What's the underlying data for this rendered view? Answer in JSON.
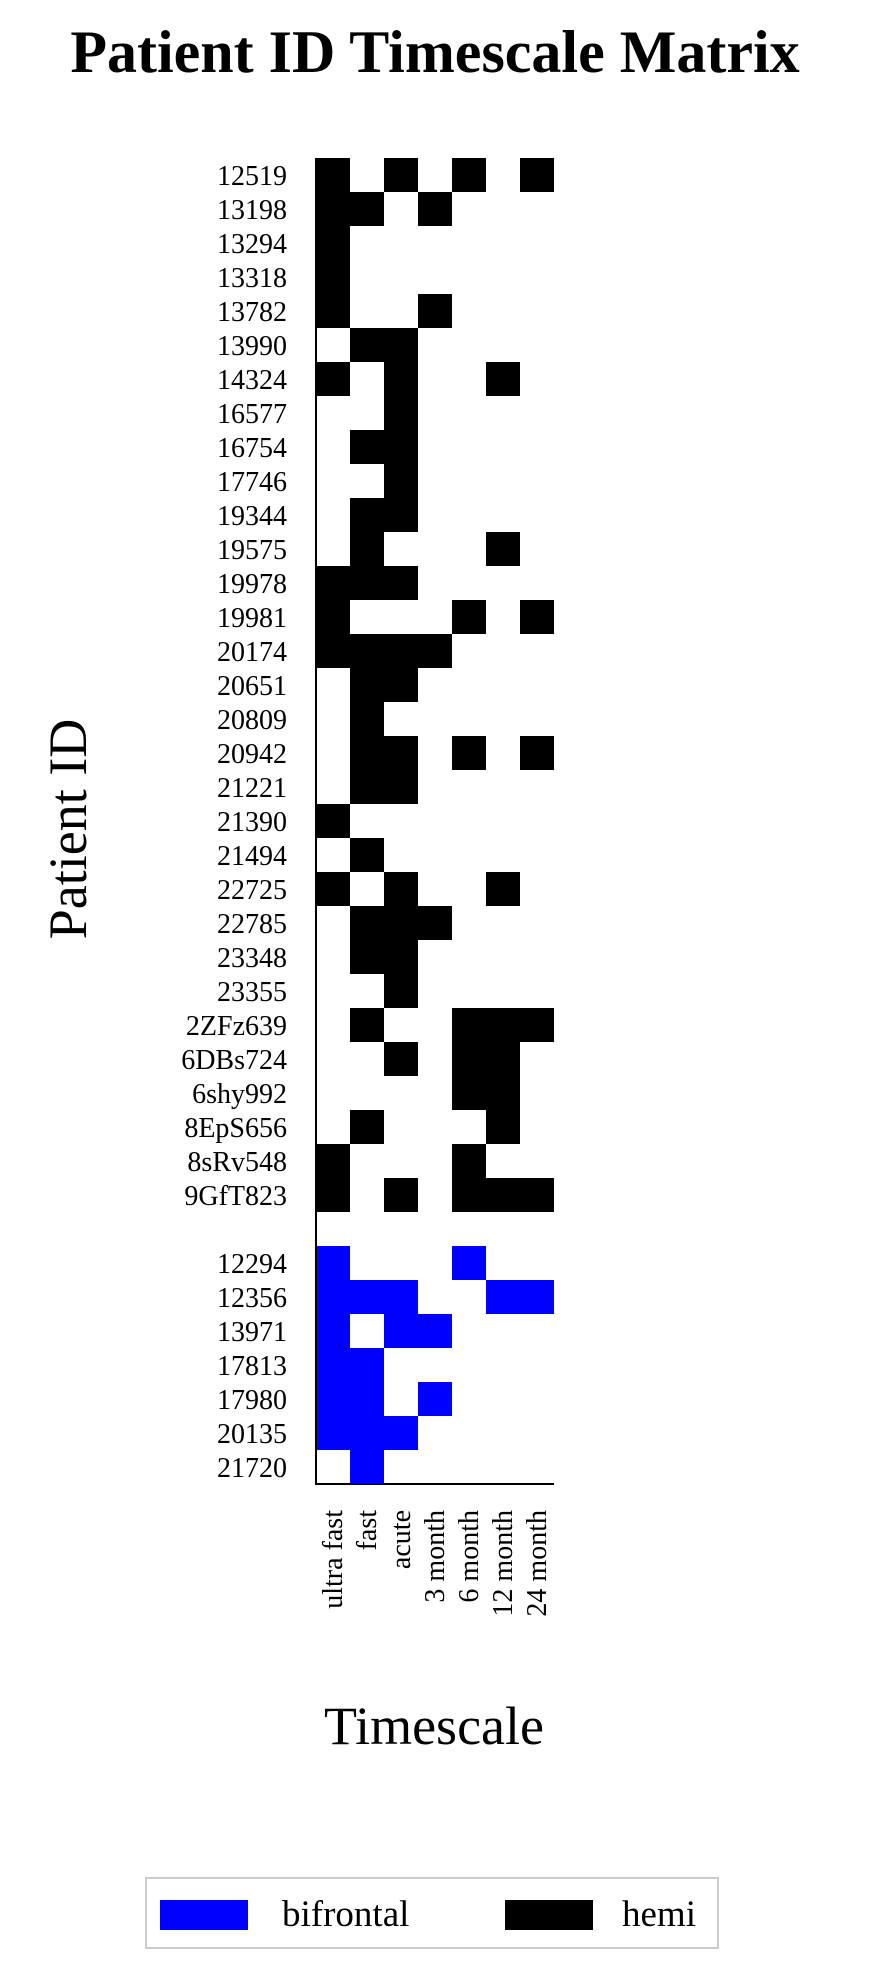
{
  "chart_data": {
    "type": "heatmap",
    "title": "Patient ID Timescale Matrix",
    "xlabel": "Timescale",
    "ylabel": "Patient ID",
    "timescales": [
      "ultra fast",
      "fast",
      "acute",
      "3 month",
      "6 month",
      "12 month",
      "24 month"
    ],
    "groups": [
      {
        "name": "hemi",
        "color": "#000000",
        "rows": [
          {
            "id": "12519",
            "values": [
              1,
              0,
              1,
              0,
              1,
              0,
              1
            ]
          },
          {
            "id": "13198",
            "values": [
              1,
              1,
              0,
              1,
              0,
              0,
              0
            ]
          },
          {
            "id": "13294",
            "values": [
              1,
              0,
              0,
              0,
              0,
              0,
              0
            ]
          },
          {
            "id": "13318",
            "values": [
              1,
              0,
              0,
              0,
              0,
              0,
              0
            ]
          },
          {
            "id": "13782",
            "values": [
              1,
              0,
              0,
              1,
              0,
              0,
              0
            ]
          },
          {
            "id": "13990",
            "values": [
              0,
              1,
              1,
              0,
              0,
              0,
              0
            ]
          },
          {
            "id": "14324",
            "values": [
              1,
              0,
              1,
              0,
              0,
              1,
              0
            ]
          },
          {
            "id": "16577",
            "values": [
              0,
              0,
              1,
              0,
              0,
              0,
              0
            ]
          },
          {
            "id": "16754",
            "values": [
              0,
              1,
              1,
              0,
              0,
              0,
              0
            ]
          },
          {
            "id": "17746",
            "values": [
              0,
              0,
              1,
              0,
              0,
              0,
              0
            ]
          },
          {
            "id": "19344",
            "values": [
              0,
              1,
              1,
              0,
              0,
              0,
              0
            ]
          },
          {
            "id": "19575",
            "values": [
              0,
              1,
              0,
              0,
              0,
              1,
              0
            ]
          },
          {
            "id": "19978",
            "values": [
              1,
              1,
              1,
              0,
              0,
              0,
              0
            ]
          },
          {
            "id": "19981",
            "values": [
              1,
              0,
              0,
              0,
              1,
              0,
              1
            ]
          },
          {
            "id": "20174",
            "values": [
              1,
              1,
              1,
              1,
              0,
              0,
              0
            ]
          },
          {
            "id": "20651",
            "values": [
              0,
              1,
              1,
              0,
              0,
              0,
              0
            ]
          },
          {
            "id": "20809",
            "values": [
              0,
              1,
              0,
              0,
              0,
              0,
              0
            ]
          },
          {
            "id": "20942",
            "values": [
              0,
              1,
              1,
              0,
              1,
              0,
              1
            ]
          },
          {
            "id": "21221",
            "values": [
              0,
              1,
              1,
              0,
              0,
              0,
              0
            ]
          },
          {
            "id": "21390",
            "values": [
              1,
              0,
              0,
              0,
              0,
              0,
              0
            ]
          },
          {
            "id": "21494",
            "values": [
              0,
              1,
              0,
              0,
              0,
              0,
              0
            ]
          },
          {
            "id": "22725",
            "values": [
              1,
              0,
              1,
              0,
              0,
              1,
              0
            ]
          },
          {
            "id": "22785",
            "values": [
              0,
              1,
              1,
              1,
              0,
              0,
              0
            ]
          },
          {
            "id": "23348",
            "values": [
              0,
              1,
              1,
              0,
              0,
              0,
              0
            ]
          },
          {
            "id": "23355",
            "values": [
              0,
              0,
              1,
              0,
              0,
              0,
              0
            ]
          },
          {
            "id": "2ZFz639",
            "values": [
              0,
              1,
              0,
              0,
              1,
              1,
              1
            ]
          },
          {
            "id": "6DBs724",
            "values": [
              0,
              0,
              1,
              0,
              1,
              1,
              0
            ]
          },
          {
            "id": "6shy992",
            "values": [
              0,
              0,
              0,
              0,
              1,
              1,
              0
            ]
          },
          {
            "id": "8EpS656",
            "values": [
              0,
              1,
              0,
              0,
              0,
              1,
              0
            ]
          },
          {
            "id": "8sRv548",
            "values": [
              1,
              0,
              0,
              0,
              1,
              0,
              0
            ]
          },
          {
            "id": "9GfT823",
            "values": [
              1,
              0,
              1,
              0,
              1,
              1,
              1
            ]
          }
        ]
      },
      {
        "name": "bifrontal",
        "color": "#0000ff",
        "rows": [
          {
            "id": "12294",
            "values": [
              1,
              0,
              0,
              0,
              1,
              0,
              0
            ]
          },
          {
            "id": "12356",
            "values": [
              1,
              1,
              1,
              0,
              0,
              1,
              1
            ]
          },
          {
            "id": "13971",
            "values": [
              1,
              0,
              1,
              1,
              0,
              0,
              0
            ]
          },
          {
            "id": "17813",
            "values": [
              1,
              1,
              0,
              0,
              0,
              0,
              0
            ]
          },
          {
            "id": "17980",
            "values": [
              1,
              1,
              0,
              1,
              0,
              0,
              0
            ]
          },
          {
            "id": "20135",
            "values": [
              1,
              1,
              1,
              0,
              0,
              0,
              0
            ]
          },
          {
            "id": "21720",
            "values": [
              0,
              1,
              0,
              0,
              0,
              0,
              0
            ]
          }
        ]
      }
    ],
    "legend": {
      "position": "bottom",
      "entries": [
        {
          "label": "bifrontal",
          "color": "#0000ff"
        },
        {
          "label": "hemi",
          "color": "#000000"
        }
      ]
    },
    "grid": false
  }
}
